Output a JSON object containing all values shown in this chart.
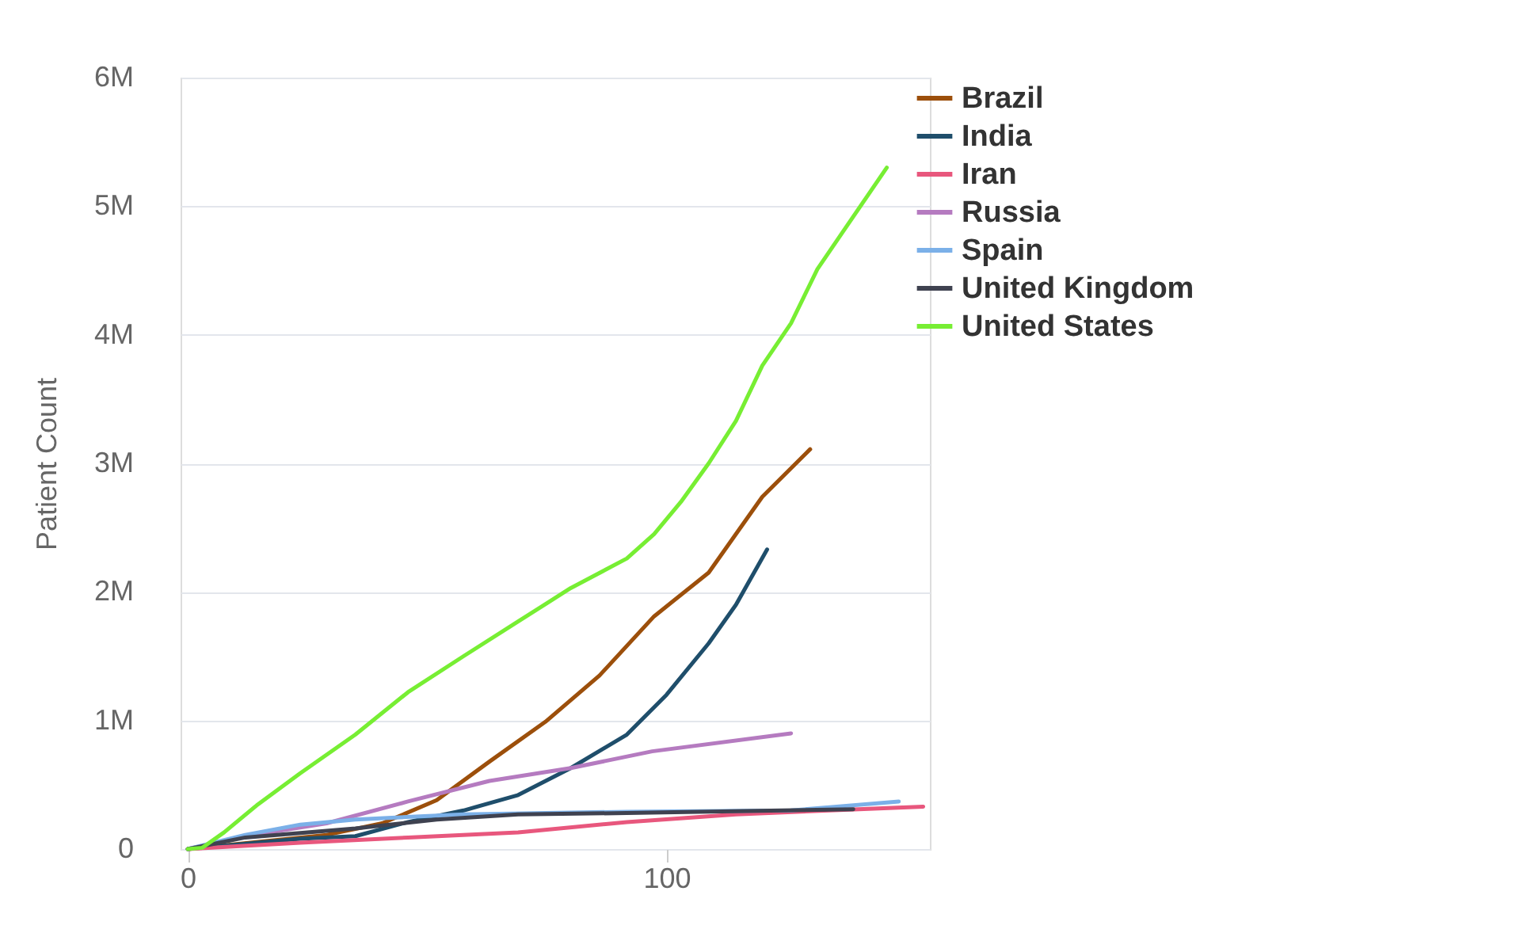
{
  "chart_data": {
    "type": "line",
    "ylabel": "Patient Count",
    "xlim": [
      -1.5,
      155
    ],
    "xticks": [
      0,
      100
    ],
    "ylim": [
      0,
      6000000
    ],
    "yticks": [
      {
        "value": 0,
        "label": "0"
      },
      {
        "value": 1000000,
        "label": "1M"
      },
      {
        "value": 2000000,
        "label": "2M"
      },
      {
        "value": 3000000,
        "label": "3M"
      },
      {
        "value": 4000000,
        "label": "4M"
      },
      {
        "value": 5000000,
        "label": "5M"
      },
      {
        "value": 6000000,
        "label": "6M"
      }
    ],
    "grid": "y",
    "legend": "right",
    "series": [
      {
        "name": "Brazil",
        "color": "#9c4f0b",
        "x": [
          0,
          29,
          40.6,
          52,
          63,
          74.7,
          86,
          97.4,
          108.8,
          114.5,
          120,
          130
        ],
        "values": [
          0,
          110000,
          200000,
          380000,
          680000,
          990000,
          1350000,
          1810000,
          2150000,
          2450000,
          2740000,
          3110000
        ]
      },
      {
        "name": "India",
        "color": "#1f4e6b",
        "x": [
          0,
          23.5,
          35,
          46,
          57.6,
          69,
          80,
          91.7,
          100,
          108.8,
          114.5,
          121
        ],
        "values": [
          0,
          80000,
          100000,
          210000,
          300000,
          420000,
          630000,
          890000,
          1200000,
          1600000,
          1900000,
          2330000
        ]
      },
      {
        "name": "Iran",
        "color": "#e8577d",
        "x": [
          0,
          23.5,
          46,
          69,
          91.7,
          114.5,
          153.6
        ],
        "values": [
          0,
          50000,
          90000,
          130000,
          210000,
          270000,
          330000
        ]
      },
      {
        "name": "Russia",
        "color": "#b57bc0",
        "x": [
          0,
          12,
          29,
          46,
          63,
          80,
          97,
          126
        ],
        "values": [
          0,
          100000,
          200000,
          370000,
          530000,
          630000,
          760000,
          900000
        ]
      },
      {
        "name": "Spain",
        "color": "#7bb0e8",
        "x": [
          0,
          12,
          23.5,
          35,
          57.6,
          91.7,
          126,
          148.5
        ],
        "values": [
          0,
          110000,
          190000,
          230000,
          270000,
          290000,
          300000,
          370000
        ]
      },
      {
        "name": "United Kingdom",
        "color": "#3f4250",
        "x": [
          0,
          12,
          35,
          52,
          69,
          91.7,
          139
        ],
        "values": [
          0,
          90000,
          160000,
          230000,
          270000,
          280000,
          310000
        ]
      },
      {
        "name": "United States",
        "color": "#77ee33",
        "x": [
          0,
          3,
          7.6,
          14.4,
          23.5,
          35,
          46,
          57.6,
          69,
          80,
          91.7,
          97.4,
          103,
          108.8,
          114.5,
          120,
          126,
          131.5,
          137,
          146
        ],
        "values": [
          0,
          10000,
          130000,
          340000,
          590000,
          890000,
          1220000,
          1500000,
          1770000,
          2030000,
          2260000,
          2450000,
          2700000,
          3000000,
          3330000,
          3760000,
          4090000,
          4510000,
          4810000,
          5300000
        ]
      }
    ]
  }
}
